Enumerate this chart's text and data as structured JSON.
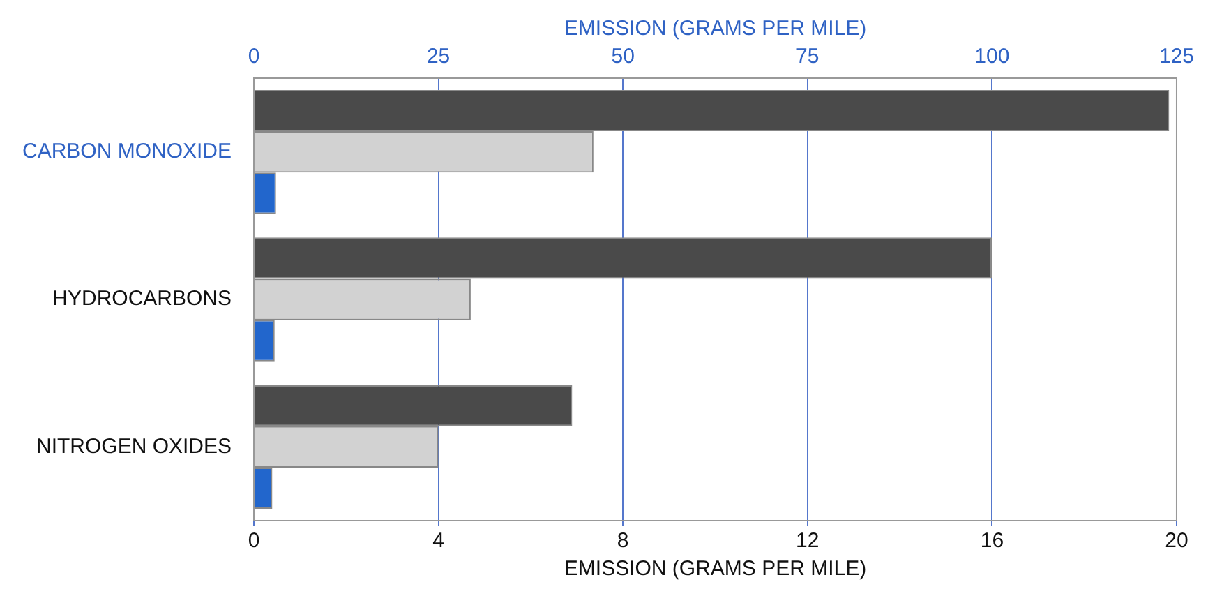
{
  "chart_data": {
    "type": "bar",
    "orientation": "horizontal",
    "categories": [
      "CARBON MONOXIDE",
      "HYDROCARBONS",
      "NITROGEN OXIDES"
    ],
    "series": [
      {
        "color": "#4a4a4a",
        "axis": "x2",
        "values": [
          124,
          null,
          null
        ]
      },
      {
        "color": "#d2d2d2",
        "axis": "x2",
        "values": [
          46,
          null,
          null
        ]
      },
      {
        "color": "#2266cc",
        "axis": "x2",
        "values": [
          3,
          null,
          null
        ]
      },
      {
        "color": "#4a4a4a",
        "values": [
          null,
          16,
          6.9
        ]
      },
      {
        "color": "#d2d2d2",
        "values": [
          null,
          4.7,
          4.0
        ]
      },
      {
        "color": "#2266cc",
        "values": [
          null,
          0.45,
          0.4
        ]
      }
    ],
    "xlabel": "EMISSION (GRAMS PER MILE)",
    "xlim": [
      0,
      20
    ],
    "xticks": [
      0,
      4,
      8,
      12,
      16,
      20
    ],
    "x2label": "EMISSION (GRAMS PER MILE)",
    "x2lim": [
      0,
      125
    ],
    "x2ticks": [
      0,
      25,
      50,
      75,
      100,
      125
    ],
    "grid": "x",
    "legend": false
  }
}
